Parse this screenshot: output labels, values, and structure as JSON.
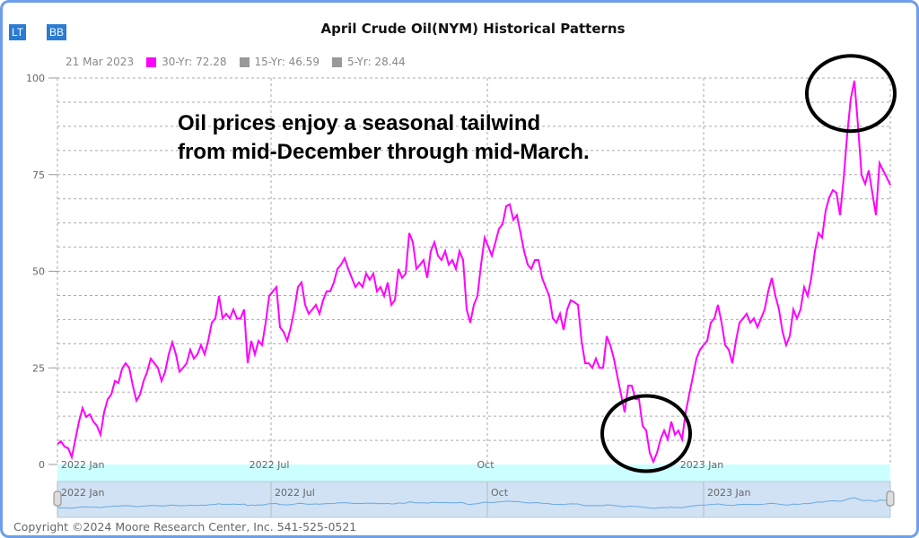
{
  "buttons": {
    "lt": "LT",
    "bb": "BB"
  },
  "legend": {
    "date": "21 Mar 2023",
    "s30": "30-Yr: 72.28",
    "s15": "15-Yr: 46.59",
    "s5": "5-Yr: 28.44"
  },
  "copyright": "Copyright ©2024 Moore Research Center, Inc. 541-525-0521",
  "colors": {
    "s30": "#ff00ff",
    "s15": "#999999",
    "s5": "#999999",
    "navigator": "#6aa9e6"
  },
  "chart_data": {
    "type": "line",
    "title": "April Crude Oil(NYM) Historical Patterns",
    "annotation": [
      "Oil prices enjoy a seasonal tailwind",
      "from mid-December through mid-March."
    ],
    "ylim": [
      0,
      100
    ],
    "yticks": [
      0,
      25,
      50,
      75,
      100
    ],
    "xlim": [
      0,
      232
    ],
    "xticks": [
      {
        "at": 0,
        "label": "2022 Jan"
      },
      {
        "at": 59.5,
        "label": "2022 Jul"
      },
      {
        "at": 119.75,
        "label": "Oct"
      },
      {
        "at": 180,
        "label": "2023 Jan"
      }
    ],
    "highlight_circles": [
      {
        "at": 164,
        "value": 8
      },
      {
        "at": 221,
        "value": 96
      }
    ],
    "series": [
      {
        "name": "30-Yr",
        "values": [
          5.3,
          6,
          4.6,
          4.2,
          1.9,
          6.5,
          11.1,
          14.6,
          12.3,
          13,
          11.1,
          10,
          7.7,
          13.5,
          16.9,
          18.1,
          21.6,
          21.1,
          24.8,
          26.2,
          25,
          20.4,
          16.5,
          18.1,
          21.6,
          24,
          27.4,
          26.2,
          25,
          21.6,
          24,
          28.5,
          31.6,
          28.5,
          24,
          25,
          26.2,
          29.7,
          27.4,
          28.5,
          30.9,
          28.5,
          32,
          36.7,
          37.8,
          43.6,
          37.8,
          39,
          37.8,
          40.1,
          37.8,
          37.8,
          40.1,
          26.2,
          32,
          28.5,
          32,
          30.9,
          36.7,
          43.6,
          44.8,
          45.9,
          35.5,
          34.3,
          32,
          35.5,
          40.1,
          45.9,
          47.1,
          41.3,
          39,
          40.1,
          41.3,
          39,
          42.5,
          44.8,
          44.8,
          47.1,
          50.6,
          51.7,
          53.4,
          50.6,
          48.3,
          45.9,
          47.1,
          45.9,
          49.4,
          47.8,
          49.4,
          44.8,
          45.9,
          43.6,
          47.1,
          41.3,
          42.5,
          50.6,
          48.3,
          49.4,
          59.9,
          57.5,
          50.6,
          51.7,
          52.9,
          48.3,
          55.2,
          57.5,
          54,
          52.9,
          55.2,
          51.7,
          52.9,
          50.6,
          55.2,
          52.9,
          40.1,
          36.7,
          41.3,
          43.6,
          51.7,
          58.7,
          56.4,
          54,
          57.5,
          61,
          62.2,
          66.8,
          67.3,
          63.3,
          64.5,
          59.9,
          55.2,
          51.7,
          50.6,
          52.9,
          52.9,
          48.3,
          45.9,
          43.6,
          37.8,
          36.7,
          39,
          34.8,
          40.1,
          42.5,
          42,
          41.3,
          32,
          26.2,
          26.2,
          25,
          27.4,
          25,
          25,
          33.2,
          30.9,
          27.4,
          22.7,
          18.1,
          13.5,
          20.4,
          20.4,
          16.9,
          16.9,
          10,
          8.8,
          3,
          0.7,
          3,
          6.5,
          8.8,
          6.5,
          11.1,
          7.7,
          8.8,
          6.5,
          13.5,
          18.1,
          22.7,
          27.4,
          29.7,
          30.9,
          32,
          36.7,
          37.8,
          41.3,
          36.7,
          30.9,
          29.7,
          26.2,
          32,
          36.7,
          37.8,
          39,
          36.7,
          37.8,
          35.5,
          37.8,
          40.1,
          44.8,
          48.3,
          43.6,
          40.1,
          34.3,
          30.9,
          33.2,
          40.1,
          37.8,
          40.1,
          45.9,
          43.6,
          48.3,
          55.2,
          59.9,
          58.7,
          65.7,
          69.1,
          71,
          70.3,
          64.5,
          73.8,
          85.4,
          94.7,
          99.3,
          87.7,
          74.9,
          72.6,
          76.1,
          70.3,
          64.5,
          78,
          76.1,
          74.3,
          72.3
        ]
      }
    ]
  }
}
